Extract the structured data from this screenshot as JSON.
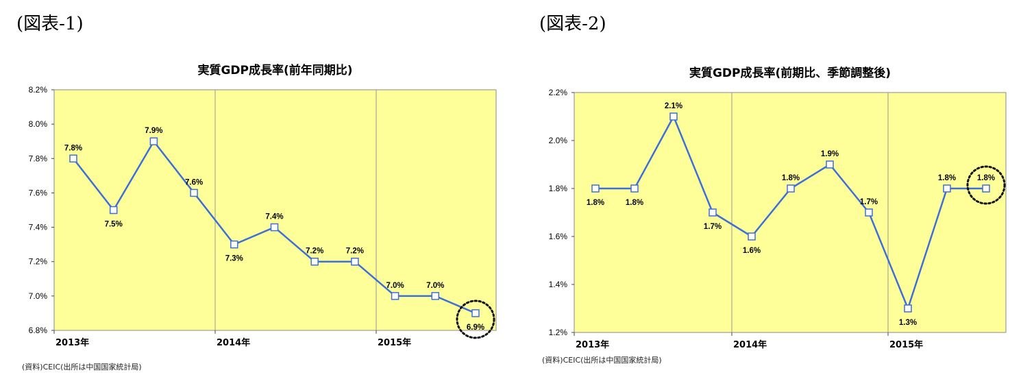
{
  "figures": [
    {
      "label": "(図表-1)"
    },
    {
      "label": "(図表-2)"
    }
  ],
  "chart_data": [
    {
      "type": "line",
      "title": "実質GDP成長率(前年同期比)",
      "xlabel": "",
      "ylabel": "",
      "ylim": [
        6.8,
        8.2
      ],
      "y_ticks": [
        "8.2%",
        "8.0%",
        "7.8%",
        "7.6%",
        "7.4%",
        "7.2%",
        "7.0%",
        "6.8%"
      ],
      "x_ticks": [
        "2013年",
        "2014年",
        "2015年"
      ],
      "grid": "vertical year separators",
      "values": [
        7.8,
        7.5,
        7.9,
        7.6,
        7.3,
        7.4,
        7.2,
        7.2,
        7.0,
        7.0,
        6.9
      ],
      "data_labels": [
        "7.8%",
        "7.5%",
        "7.9%",
        "7.6%",
        "7.3%",
        "7.4%",
        "7.2%",
        "7.2%",
        "7.0%",
        "7.0%",
        "6.9%"
      ],
      "highlight": "last point circled",
      "source": "(資料)CEIC(出所は中国国家統計局)",
      "colors": {
        "plot_bg": "#ffff99",
        "line": "#3d6fd9",
        "marker_fill": "#ffffff"
      }
    },
    {
      "type": "line",
      "title": "実質GDP成長率(前期比、季節調整後)",
      "xlabel": "",
      "ylabel": "",
      "ylim": [
        1.2,
        2.2
      ],
      "y_ticks": [
        "2.2%",
        "2.0%",
        "1.8%",
        "1.6%",
        "1.4%",
        "1.2%"
      ],
      "x_ticks": [
        "2013年",
        "2014年",
        "2015年"
      ],
      "grid": "vertical year separators",
      "values": [
        1.8,
        1.8,
        2.1,
        1.7,
        1.6,
        1.8,
        1.9,
        1.7,
        1.3,
        1.8,
        1.8
      ],
      "data_labels": [
        "1.8%",
        "1.8%",
        "2.1%",
        "1.7%",
        "1.6%",
        "1.8%",
        "1.9%",
        "1.7%",
        "1.3%",
        "1.8%",
        "1.8%"
      ],
      "highlight": "last point circled",
      "source": "(資料)CEIC(出所は中国国家統計局)",
      "colors": {
        "plot_bg": "#ffff99",
        "line": "#3d6fd9",
        "marker_fill": "#ffffff"
      }
    }
  ]
}
